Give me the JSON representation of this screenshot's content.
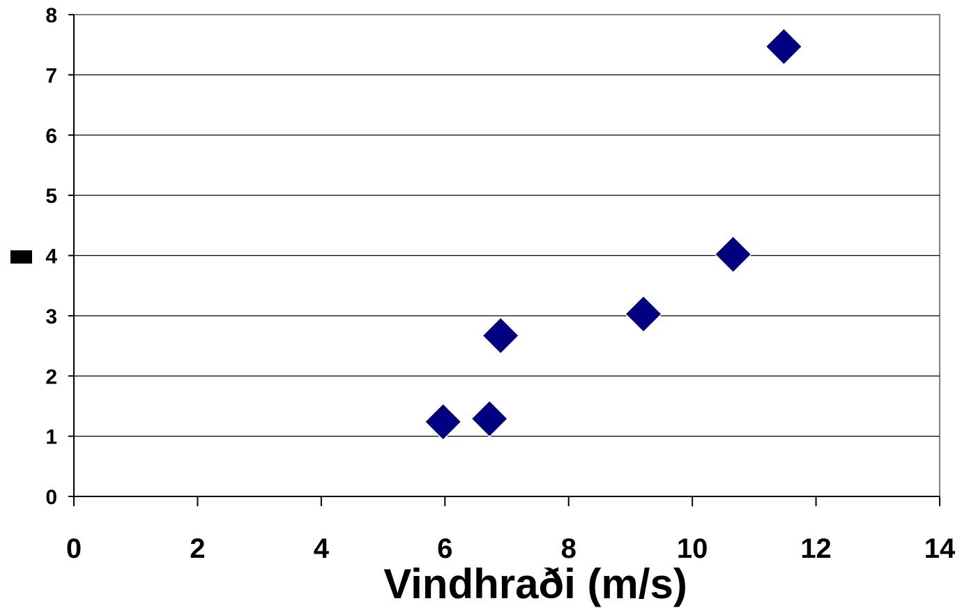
{
  "chart_data": {
    "type": "scatter",
    "title": "",
    "xlabel": "Vindhraði (m/s)",
    "ylabel": "",
    "xlim": [
      0,
      14
    ],
    "ylim": [
      0,
      8
    ],
    "xticks": [
      0,
      2,
      4,
      6,
      8,
      10,
      12,
      14
    ],
    "yticks": [
      0,
      1,
      2,
      3,
      4,
      5,
      6,
      7,
      8
    ],
    "grid": "horizontal",
    "legend": "left-middle",
    "marker": "diamond",
    "marker_color": "#000080",
    "series": [
      {
        "x": [
          5.97,
          6.72,
          6.9,
          9.21,
          10.66,
          11.48
        ],
        "y": [
          1.24,
          1.29,
          2.67,
          3.03,
          4.02,
          7.47
        ]
      }
    ]
  }
}
